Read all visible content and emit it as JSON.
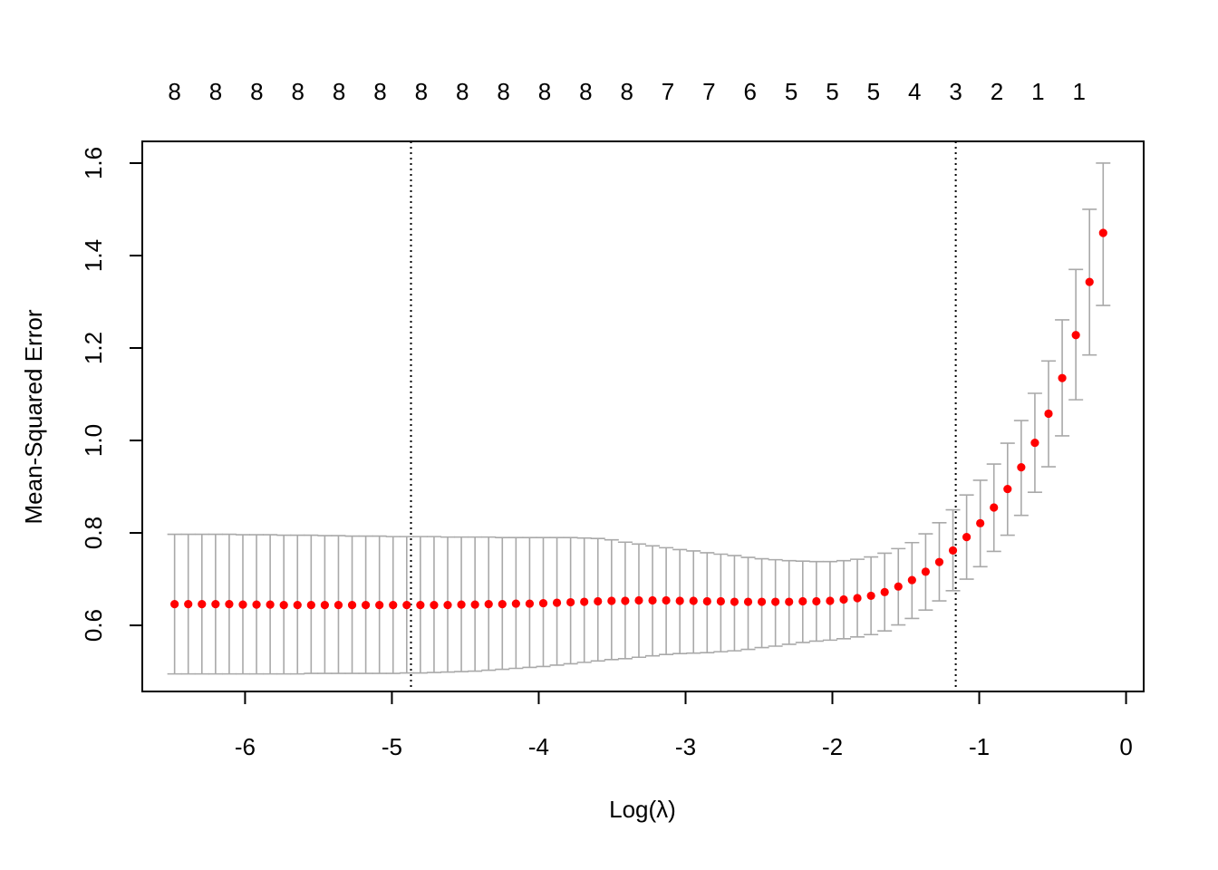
{
  "chart_data": {
    "type": "scatter",
    "title": "",
    "xlabel": "Log(λ)",
    "ylabel": "Mean-Squared Error",
    "xlim": [
      -6.7,
      0.12
    ],
    "ylim": [
      0.457,
      1.647
    ],
    "x_ticks": [
      -6,
      -5,
      -4,
      -3,
      -2,
      -1,
      0
    ],
    "x_tick_labels": [
      "-6",
      "-5",
      "-4",
      "-3",
      "-2",
      "-1",
      "0"
    ],
    "y_ticks": [
      0.6,
      0.8,
      1.0,
      1.2,
      1.4,
      1.6
    ],
    "y_tick_labels": [
      "0.6",
      "0.8",
      "1.0",
      "1.2",
      "1.4",
      "1.6"
    ],
    "top_axis": {
      "x": [
        -6.48,
        -6.2,
        -5.92,
        -5.64,
        -5.36,
        -5.08,
        -4.8,
        -4.52,
        -4.24,
        -3.96,
        -3.68,
        -3.4,
        -3.12,
        -2.84,
        -2.56,
        -2.28,
        -2.0,
        -1.72,
        -1.44,
        -1.16,
        -0.88,
        -0.6,
        -0.32
      ],
      "labels": [
        "8",
        "8",
        "8",
        "8",
        "8",
        "8",
        "8",
        "8",
        "8",
        "8",
        "8",
        "8",
        "7",
        "7",
        "6",
        "5",
        "5",
        "5",
        "4",
        "3",
        "2",
        "1",
        "1"
      ]
    },
    "vlines": [
      {
        "x": -4.87,
        "style": "dotted",
        "color": "#000000"
      },
      {
        "x": -1.16,
        "style": "dotted",
        "color": "#000000"
      }
    ],
    "point_color": "#ff0000",
    "errorbar_color": "#a9a9a9",
    "x": [
      -6.48,
      -6.387,
      -6.294,
      -6.201,
      -6.108,
      -6.015,
      -5.922,
      -5.829,
      -5.736,
      -5.643,
      -5.55,
      -5.457,
      -5.364,
      -5.271,
      -5.178,
      -5.085,
      -4.992,
      -4.899,
      -4.806,
      -4.713,
      -4.62,
      -4.527,
      -4.434,
      -4.341,
      -4.248,
      -4.155,
      -4.062,
      -3.969,
      -3.876,
      -3.783,
      -3.69,
      -3.597,
      -3.504,
      -3.411,
      -3.318,
      -3.225,
      -3.132,
      -3.039,
      -2.946,
      -2.853,
      -2.76,
      -2.667,
      -2.574,
      -2.481,
      -2.388,
      -2.295,
      -2.202,
      -2.109,
      -2.016,
      -1.923,
      -1.83,
      -1.737,
      -1.644,
      -1.551,
      -1.458,
      -1.365,
      -1.272,
      -1.179,
      -1.086,
      -0.993,
      -0.9,
      -0.807,
      -0.714,
      -0.621,
      -0.528,
      -0.435,
      -0.342,
      -0.249,
      -0.156
    ],
    "mse": [
      0.646,
      0.646,
      0.646,
      0.646,
      0.646,
      0.645,
      0.645,
      0.645,
      0.644,
      0.644,
      0.644,
      0.644,
      0.644,
      0.644,
      0.644,
      0.644,
      0.644,
      0.644,
      0.644,
      0.644,
      0.644,
      0.645,
      0.645,
      0.646,
      0.646,
      0.647,
      0.647,
      0.648,
      0.649,
      0.65,
      0.651,
      0.652,
      0.653,
      0.653,
      0.654,
      0.654,
      0.654,
      0.653,
      0.653,
      0.652,
      0.652,
      0.651,
      0.651,
      0.651,
      0.651,
      0.651,
      0.652,
      0.652,
      0.653,
      0.656,
      0.659,
      0.664,
      0.672,
      0.684,
      0.698,
      0.716,
      0.737,
      0.762,
      0.791,
      0.821,
      0.855,
      0.895,
      0.942,
      0.995,
      1.058,
      1.135,
      1.228,
      1.343,
      1.449
    ],
    "upper": [
      0.797,
      0.797,
      0.797,
      0.797,
      0.797,
      0.796,
      0.796,
      0.796,
      0.795,
      0.795,
      0.795,
      0.794,
      0.794,
      0.793,
      0.793,
      0.793,
      0.792,
      0.792,
      0.792,
      0.792,
      0.791,
      0.791,
      0.791,
      0.791,
      0.79,
      0.79,
      0.79,
      0.79,
      0.79,
      0.79,
      0.789,
      0.788,
      0.785,
      0.78,
      0.776,
      0.772,
      0.768,
      0.764,
      0.761,
      0.757,
      0.754,
      0.751,
      0.747,
      0.744,
      0.742,
      0.74,
      0.739,
      0.738,
      0.738,
      0.74,
      0.743,
      0.748,
      0.756,
      0.766,
      0.779,
      0.798,
      0.822,
      0.85,
      0.882,
      0.914,
      0.949,
      0.994,
      1.043,
      1.102,
      1.172,
      1.261,
      1.37,
      1.5,
      1.6
    ],
    "lower": [
      0.495,
      0.495,
      0.495,
      0.495,
      0.495,
      0.495,
      0.495,
      0.495,
      0.495,
      0.495,
      0.496,
      0.496,
      0.496,
      0.496,
      0.496,
      0.496,
      0.496,
      0.497,
      0.497,
      0.498,
      0.499,
      0.5,
      0.501,
      0.503,
      0.505,
      0.507,
      0.509,
      0.511,
      0.514,
      0.517,
      0.52,
      0.523,
      0.526,
      0.528,
      0.531,
      0.534,
      0.537,
      0.539,
      0.54,
      0.541,
      0.543,
      0.545,
      0.548,
      0.552,
      0.555,
      0.559,
      0.563,
      0.566,
      0.568,
      0.571,
      0.575,
      0.58,
      0.588,
      0.601,
      0.615,
      0.633,
      0.653,
      0.675,
      0.7,
      0.727,
      0.76,
      0.795,
      0.838,
      0.888,
      0.943,
      1.01,
      1.088,
      1.185,
      1.292
    ]
  }
}
